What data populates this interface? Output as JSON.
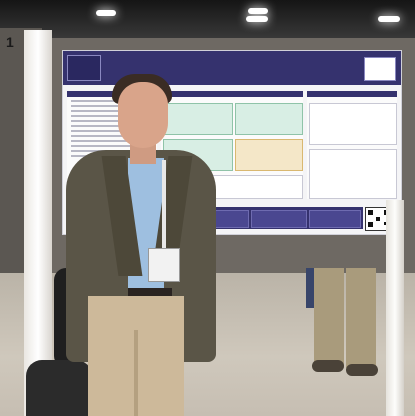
{
  "scene": {
    "board_number": "1"
  },
  "poster": {
    "logo_left_text": "",
    "title": "",
    "subtitle": "",
    "logo_right_text": ""
  },
  "colors": {
    "poster_header": "#35326e",
    "jacket": "#5a5547",
    "shirt": "#9ebfe0",
    "pants": "#cdb99a"
  },
  "icons": [
    "qr-code-icon"
  ]
}
